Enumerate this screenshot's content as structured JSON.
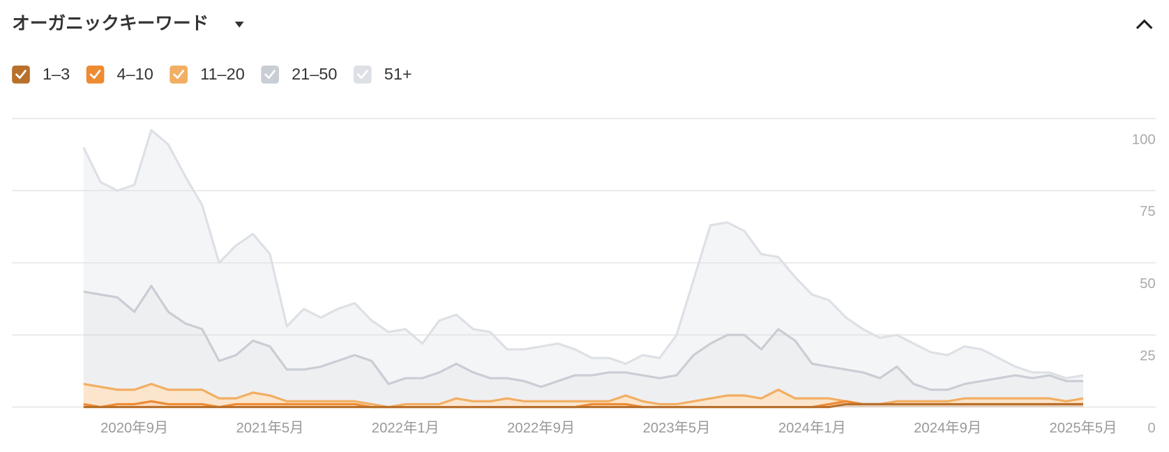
{
  "chart_data": {
    "type": "stacked-area",
    "title": "オーガニックキーワード",
    "categories": [
      null,
      null,
      null,
      "2020年9月",
      null,
      null,
      null,
      null,
      null,
      null,
      null,
      "2021年5月",
      null,
      null,
      null,
      null,
      null,
      null,
      null,
      "2022年1月",
      null,
      null,
      null,
      null,
      null,
      null,
      null,
      "2022年9月",
      null,
      null,
      null,
      null,
      null,
      null,
      null,
      "2023年5月",
      null,
      null,
      null,
      null,
      null,
      null,
      null,
      "2024年1月",
      null,
      null,
      null,
      null,
      null,
      null,
      null,
      "2024年9月",
      null,
      null,
      null,
      null,
      null,
      null,
      null,
      "2025年5月"
    ],
    "series": [
      {
        "name": "1–3",
        "color": "#b8702c",
        "values": [
          0,
          0,
          0,
          0,
          0,
          0,
          0,
          0,
          0,
          0,
          0,
          0,
          0,
          0,
          0,
          0,
          0,
          0,
          0,
          0,
          0,
          0,
          0,
          0,
          0,
          0,
          0,
          0,
          0,
          0,
          0,
          0,
          0,
          0,
          0,
          0,
          0,
          0,
          0,
          0,
          0,
          0,
          0,
          0,
          0,
          1,
          1,
          1,
          1,
          1,
          1,
          1,
          1,
          1,
          1,
          1,
          1,
          1,
          1,
          1
        ]
      },
      {
        "name": "4–10",
        "color": "#ee8a32",
        "values": [
          1,
          0,
          1,
          1,
          2,
          1,
          1,
          1,
          0,
          1,
          1,
          1,
          1,
          1,
          1,
          1,
          1,
          0,
          0,
          0,
          0,
          0,
          0,
          0,
          0,
          0,
          0,
          0,
          0,
          0,
          1,
          1,
          1,
          0,
          0,
          0,
          0,
          0,
          0,
          0,
          0,
          0,
          0,
          0,
          1,
          1,
          0,
          0,
          0,
          0,
          0,
          0,
          0,
          0,
          0,
          0,
          0,
          0,
          0,
          0
        ]
      },
      {
        "name": "11–20",
        "color": "#f2ae62",
        "values": [
          7,
          7,
          5,
          5,
          6,
          5,
          5,
          5,
          3,
          2,
          4,
          3,
          1,
          1,
          1,
          1,
          1,
          1,
          0,
          1,
          1,
          1,
          3,
          2,
          2,
          3,
          2,
          2,
          2,
          2,
          1,
          1,
          3,
          2,
          1,
          1,
          2,
          3,
          4,
          4,
          3,
          6,
          3,
          3,
          2,
          0,
          0,
          0,
          1,
          1,
          1,
          1,
          2,
          2,
          2,
          2,
          2,
          2,
          1,
          2
        ]
      },
      {
        "name": "21–50",
        "color": "#c9cdd4",
        "values": [
          32,
          32,
          32,
          27,
          34,
          27,
          23,
          21,
          13,
          15,
          18,
          17,
          11,
          11,
          12,
          14,
          16,
          15,
          8,
          9,
          9,
          11,
          12,
          10,
          8,
          7,
          7,
          5,
          7,
          9,
          9,
          10,
          8,
          9,
          9,
          10,
          16,
          19,
          21,
          21,
          17,
          21,
          20,
          12,
          11,
          11,
          11,
          9,
          12,
          6,
          4,
          4,
          5,
          6,
          7,
          8,
          7,
          8,
          7,
          6
        ]
      },
      {
        "name": "51+",
        "color": "#dde0e5",
        "values": [
          50,
          39,
          37,
          44,
          54,
          58,
          51,
          43,
          34,
          38,
          37,
          32,
          15,
          21,
          17,
          18,
          18,
          14,
          18,
          17,
          12,
          18,
          17,
          15,
          16,
          10,
          11,
          14,
          13,
          9,
          6,
          5,
          3,
          7,
          7,
          14,
          26,
          41,
          39,
          36,
          33,
          25,
          22,
          24,
          23,
          18,
          15,
          14,
          11,
          14,
          13,
          12,
          13,
          11,
          7,
          3,
          2,
          1,
          1,
          2
        ]
      }
    ],
    "ylim": [
      0,
      100
    ],
    "yticks": [
      0,
      25,
      50,
      75,
      100
    ],
    "grid": true
  }
}
